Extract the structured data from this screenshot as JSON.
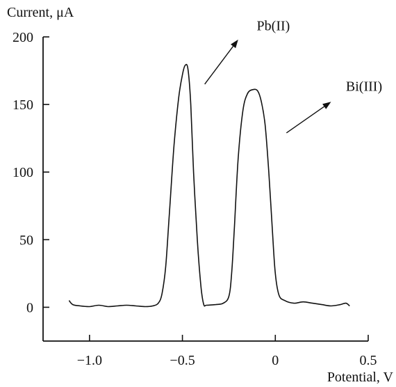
{
  "chart_data": {
    "type": "line",
    "ylabel": "Current, μA",
    "xlabel": "Potential, V",
    "xlim": [
      -1.25,
      0.5
    ],
    "ylim": [
      -25,
      200
    ],
    "x_ticks": [
      {
        "value": -1.0,
        "label": "−1.0"
      },
      {
        "value": -0.5,
        "label": "−0.5"
      },
      {
        "value": 0.0,
        "label": "0"
      },
      {
        "value": 0.5,
        "label": "0.5"
      }
    ],
    "y_ticks": [
      {
        "value": 0,
        "label": "0"
      },
      {
        "value": 50,
        "label": "50"
      },
      {
        "value": 100,
        "label": "100"
      },
      {
        "value": 150,
        "label": "150"
      },
      {
        "value": 200,
        "label": "200"
      }
    ],
    "grid": false,
    "series": [
      {
        "points": [
          [
            -1.11,
            5
          ],
          [
            -1.09,
            2
          ],
          [
            -1.05,
            1
          ],
          [
            -1.0,
            0.5
          ],
          [
            -0.95,
            1.5
          ],
          [
            -0.9,
            0.5
          ],
          [
            -0.85,
            1
          ],
          [
            -0.8,
            1.5
          ],
          [
            -0.75,
            1
          ],
          [
            -0.7,
            0.5
          ],
          [
            -0.66,
            1
          ],
          [
            -0.63,
            3
          ],
          [
            -0.61,
            10
          ],
          [
            -0.59,
            30
          ],
          [
            -0.57,
            70
          ],
          [
            -0.545,
            120
          ],
          [
            -0.52,
            155
          ],
          [
            -0.5,
            172
          ],
          [
            -0.485,
            179
          ],
          [
            -0.47,
            176
          ],
          [
            -0.455,
            150
          ],
          [
            -0.44,
            100
          ],
          [
            -0.42,
            50
          ],
          [
            -0.4,
            15
          ],
          [
            -0.385,
            2
          ],
          [
            -0.37,
            1.5
          ],
          [
            -0.32,
            2
          ],
          [
            -0.28,
            3
          ],
          [
            -0.25,
            8
          ],
          [
            -0.235,
            25
          ],
          [
            -0.22,
            60
          ],
          [
            -0.2,
            110
          ],
          [
            -0.175,
            145
          ],
          [
            -0.15,
            158
          ],
          [
            -0.12,
            161
          ],
          [
            -0.095,
            160
          ],
          [
            -0.075,
            152
          ],
          [
            -0.055,
            135
          ],
          [
            -0.035,
            100
          ],
          [
            -0.015,
            55
          ],
          [
            0.0,
            25
          ],
          [
            0.02,
            9
          ],
          [
            0.05,
            5
          ],
          [
            0.1,
            3
          ],
          [
            0.15,
            4
          ],
          [
            0.2,
            3
          ],
          [
            0.25,
            2
          ],
          [
            0.3,
            1
          ],
          [
            0.35,
            2
          ],
          [
            0.38,
            3
          ],
          [
            0.4,
            1
          ]
        ]
      }
    ],
    "annotations": [
      {
        "text": "Pb(II)",
        "arrow_from": [
          -0.38,
          165
        ],
        "arrow_to": [
          -0.2,
          198
        ],
        "label_at": [
          -0.1,
          205
        ]
      },
      {
        "text": "Bi(III)",
        "arrow_from": [
          0.06,
          129
        ],
        "arrow_to": [
          0.3,
          152
        ],
        "label_at": [
          0.38,
          160
        ]
      }
    ]
  }
}
